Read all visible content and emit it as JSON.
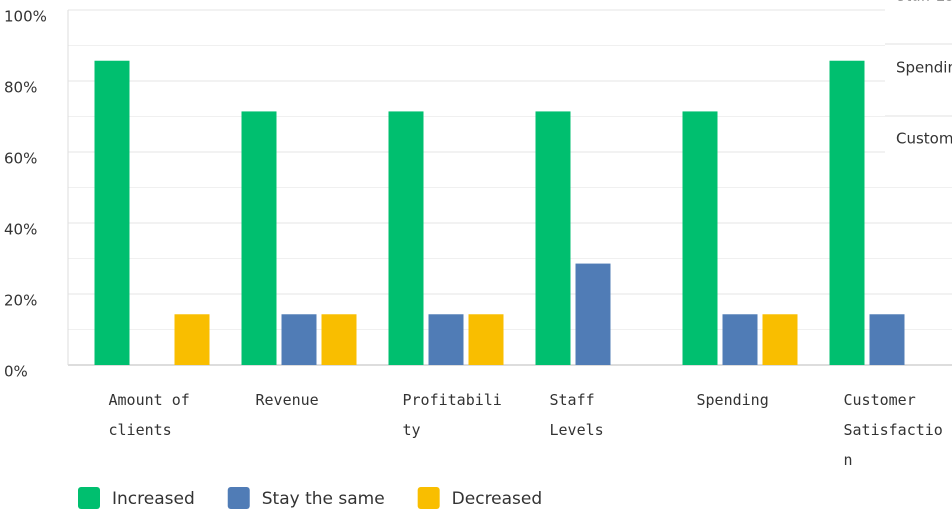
{
  "chart_data": {
    "type": "bar",
    "categories": [
      "Amount of clients",
      "Revenue",
      "Profitability",
      "Staff Levels",
      "Spending",
      "Customer Satisfaction"
    ],
    "series": [
      {
        "name": "Increased",
        "color": "#00bf6f",
        "values": [
          85.71,
          71.43,
          71.43,
          71.43,
          71.43,
          85.71
        ]
      },
      {
        "name": "Stay the same",
        "color": "#507cb6",
        "values": [
          0,
          14.29,
          14.29,
          28.57,
          14.29,
          14.29
        ]
      },
      {
        "name": "Decreased",
        "color": "#f9be00",
        "values": [
          14.29,
          14.29,
          14.29,
          0,
          14.29,
          0
        ]
      }
    ],
    "ylim": [
      0,
      100
    ],
    "yticks": [
      {
        "value": 0,
        "label": "0%"
      },
      {
        "value": 20,
        "label": "20%"
      },
      {
        "value": 40,
        "label": "40%"
      },
      {
        "value": 60,
        "label": "60%"
      },
      {
        "value": 80,
        "label": "80%"
      },
      {
        "value": 100,
        "label": "100%"
      }
    ],
    "minor_yticks": [
      10,
      30,
      50,
      70,
      90
    ],
    "grid": true,
    "legend": "bottom"
  },
  "hover_table": [
    "Staff Levels",
    "Spending",
    "Customer Satisfaction"
  ]
}
